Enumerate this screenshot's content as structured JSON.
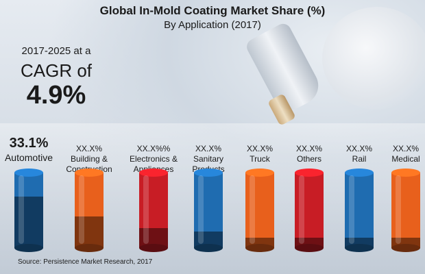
{
  "chart_data": {
    "type": "bar",
    "title": "Global In-Mold Coating Market Share (%)",
    "subtitle": "By Application (2017)",
    "categories": [
      "Automotive",
      "Building & Construction",
      "Electronics & Appliances",
      "Sanitary Products",
      "Truck",
      "Others",
      "Rail",
      "Medical"
    ],
    "value_labels": [
      "33.1%",
      "XX.X%",
      "XX.X%%",
      "XX.X%",
      "XX.X%",
      "XX.X%",
      "XX.X%",
      "XX.X%"
    ],
    "values": [
      33.1,
      null,
      null,
      null,
      null,
      null,
      null,
      null
    ],
    "bar_colors": [
      "#1f6cb0",
      "#e8601c",
      "#c81d25",
      "#1f6cb0",
      "#e8601c",
      "#c81d25",
      "#1f6cb0",
      "#e8601c"
    ],
    "dark_fraction": [
      0.68,
      0.42,
      0.26,
      0.22,
      0.14,
      0.14,
      0.14,
      0.14
    ]
  },
  "cagr": {
    "period": "2017-2025 at a",
    "label": "CAGR of",
    "value": "4.9%"
  },
  "source": "Source: Persistence Market Research, 2017"
}
